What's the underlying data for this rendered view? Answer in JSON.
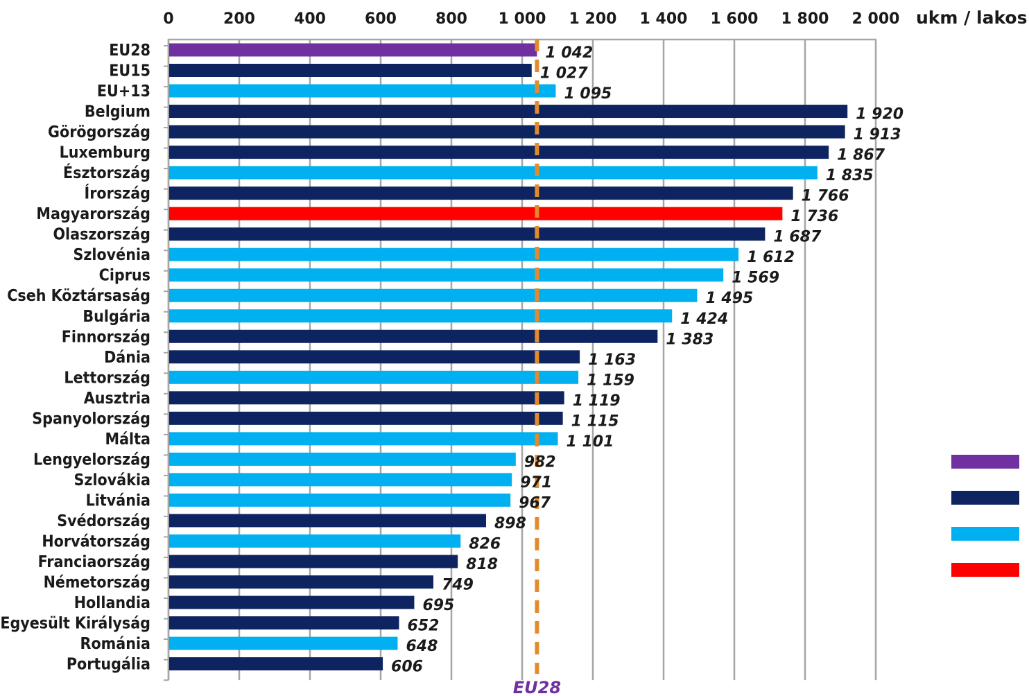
{
  "chart_data": {
    "type": "bar",
    "orientation": "horizontal",
    "xlabel": "ukm / lakos",
    "xlim": [
      0,
      2000
    ],
    "xticks": [
      "0",
      "200",
      "400",
      "600",
      "800",
      "1 000",
      "1 200",
      "1 400",
      "1 600",
      "1 800",
      "2 000"
    ],
    "grid": true,
    "reference_line": {
      "value": 1042,
      "label": "EU28",
      "color": "#e38b2c",
      "style": "dashed"
    },
    "colors": {
      "eu28": "#7030a0",
      "eu15": "#0d2461",
      "eu13": "#00b0f0",
      "hungary": "#ff0000"
    },
    "legend_swatches": [
      "eu28",
      "eu15",
      "eu13",
      "hungary"
    ],
    "categories": [
      "EU28",
      "EU15",
      "EU+13",
      "Belgium",
      "Görögország",
      "Luxemburg",
      "Észtország",
      "Írország",
      "Magyarország",
      "Olaszország",
      "Szlovénia",
      "Ciprus",
      "Cseh Köztársaság",
      "Bulgária",
      "Finnország",
      "Dánia",
      "Lettország",
      "Ausztria",
      "Spanyolország",
      "Málta",
      "Lengyelország",
      "Szlovákia",
      "Litvánia",
      "Svédország",
      "Horvátország",
      "Franciaország",
      "Németország",
      "Hollandia",
      "Egyesült Királyság",
      "Románia",
      "Portugália"
    ],
    "values": [
      1042,
      1027,
      1095,
      1920,
      1913,
      1867,
      1835,
      1766,
      1736,
      1687,
      1612,
      1569,
      1495,
      1424,
      1383,
      1163,
      1159,
      1119,
      1115,
      1101,
      982,
      971,
      967,
      898,
      826,
      818,
      749,
      695,
      652,
      648,
      606
    ],
    "value_labels": [
      "1 042",
      "1 027",
      "1 095",
      "1 920",
      "1 913",
      "1 867",
      "1 835",
      "1 766",
      "1 736",
      "1 687",
      "1 612",
      "1 569",
      "1 495",
      "1 424",
      "1 383",
      "1 163",
      "1 159",
      "1 119",
      "1 115",
      "1 101",
      "982",
      "971",
      "967",
      "898",
      "826",
      "818",
      "749",
      "695",
      "652",
      "648",
      "606"
    ],
    "groups": [
      "eu28",
      "eu15",
      "eu13",
      "eu15",
      "eu15",
      "eu15",
      "eu13",
      "eu15",
      "hungary",
      "eu15",
      "eu13",
      "eu13",
      "eu13",
      "eu13",
      "eu15",
      "eu15",
      "eu13",
      "eu15",
      "eu15",
      "eu13",
      "eu13",
      "eu13",
      "eu13",
      "eu15",
      "eu13",
      "eu15",
      "eu15",
      "eu15",
      "eu15",
      "eu13",
      "eu15"
    ]
  }
}
